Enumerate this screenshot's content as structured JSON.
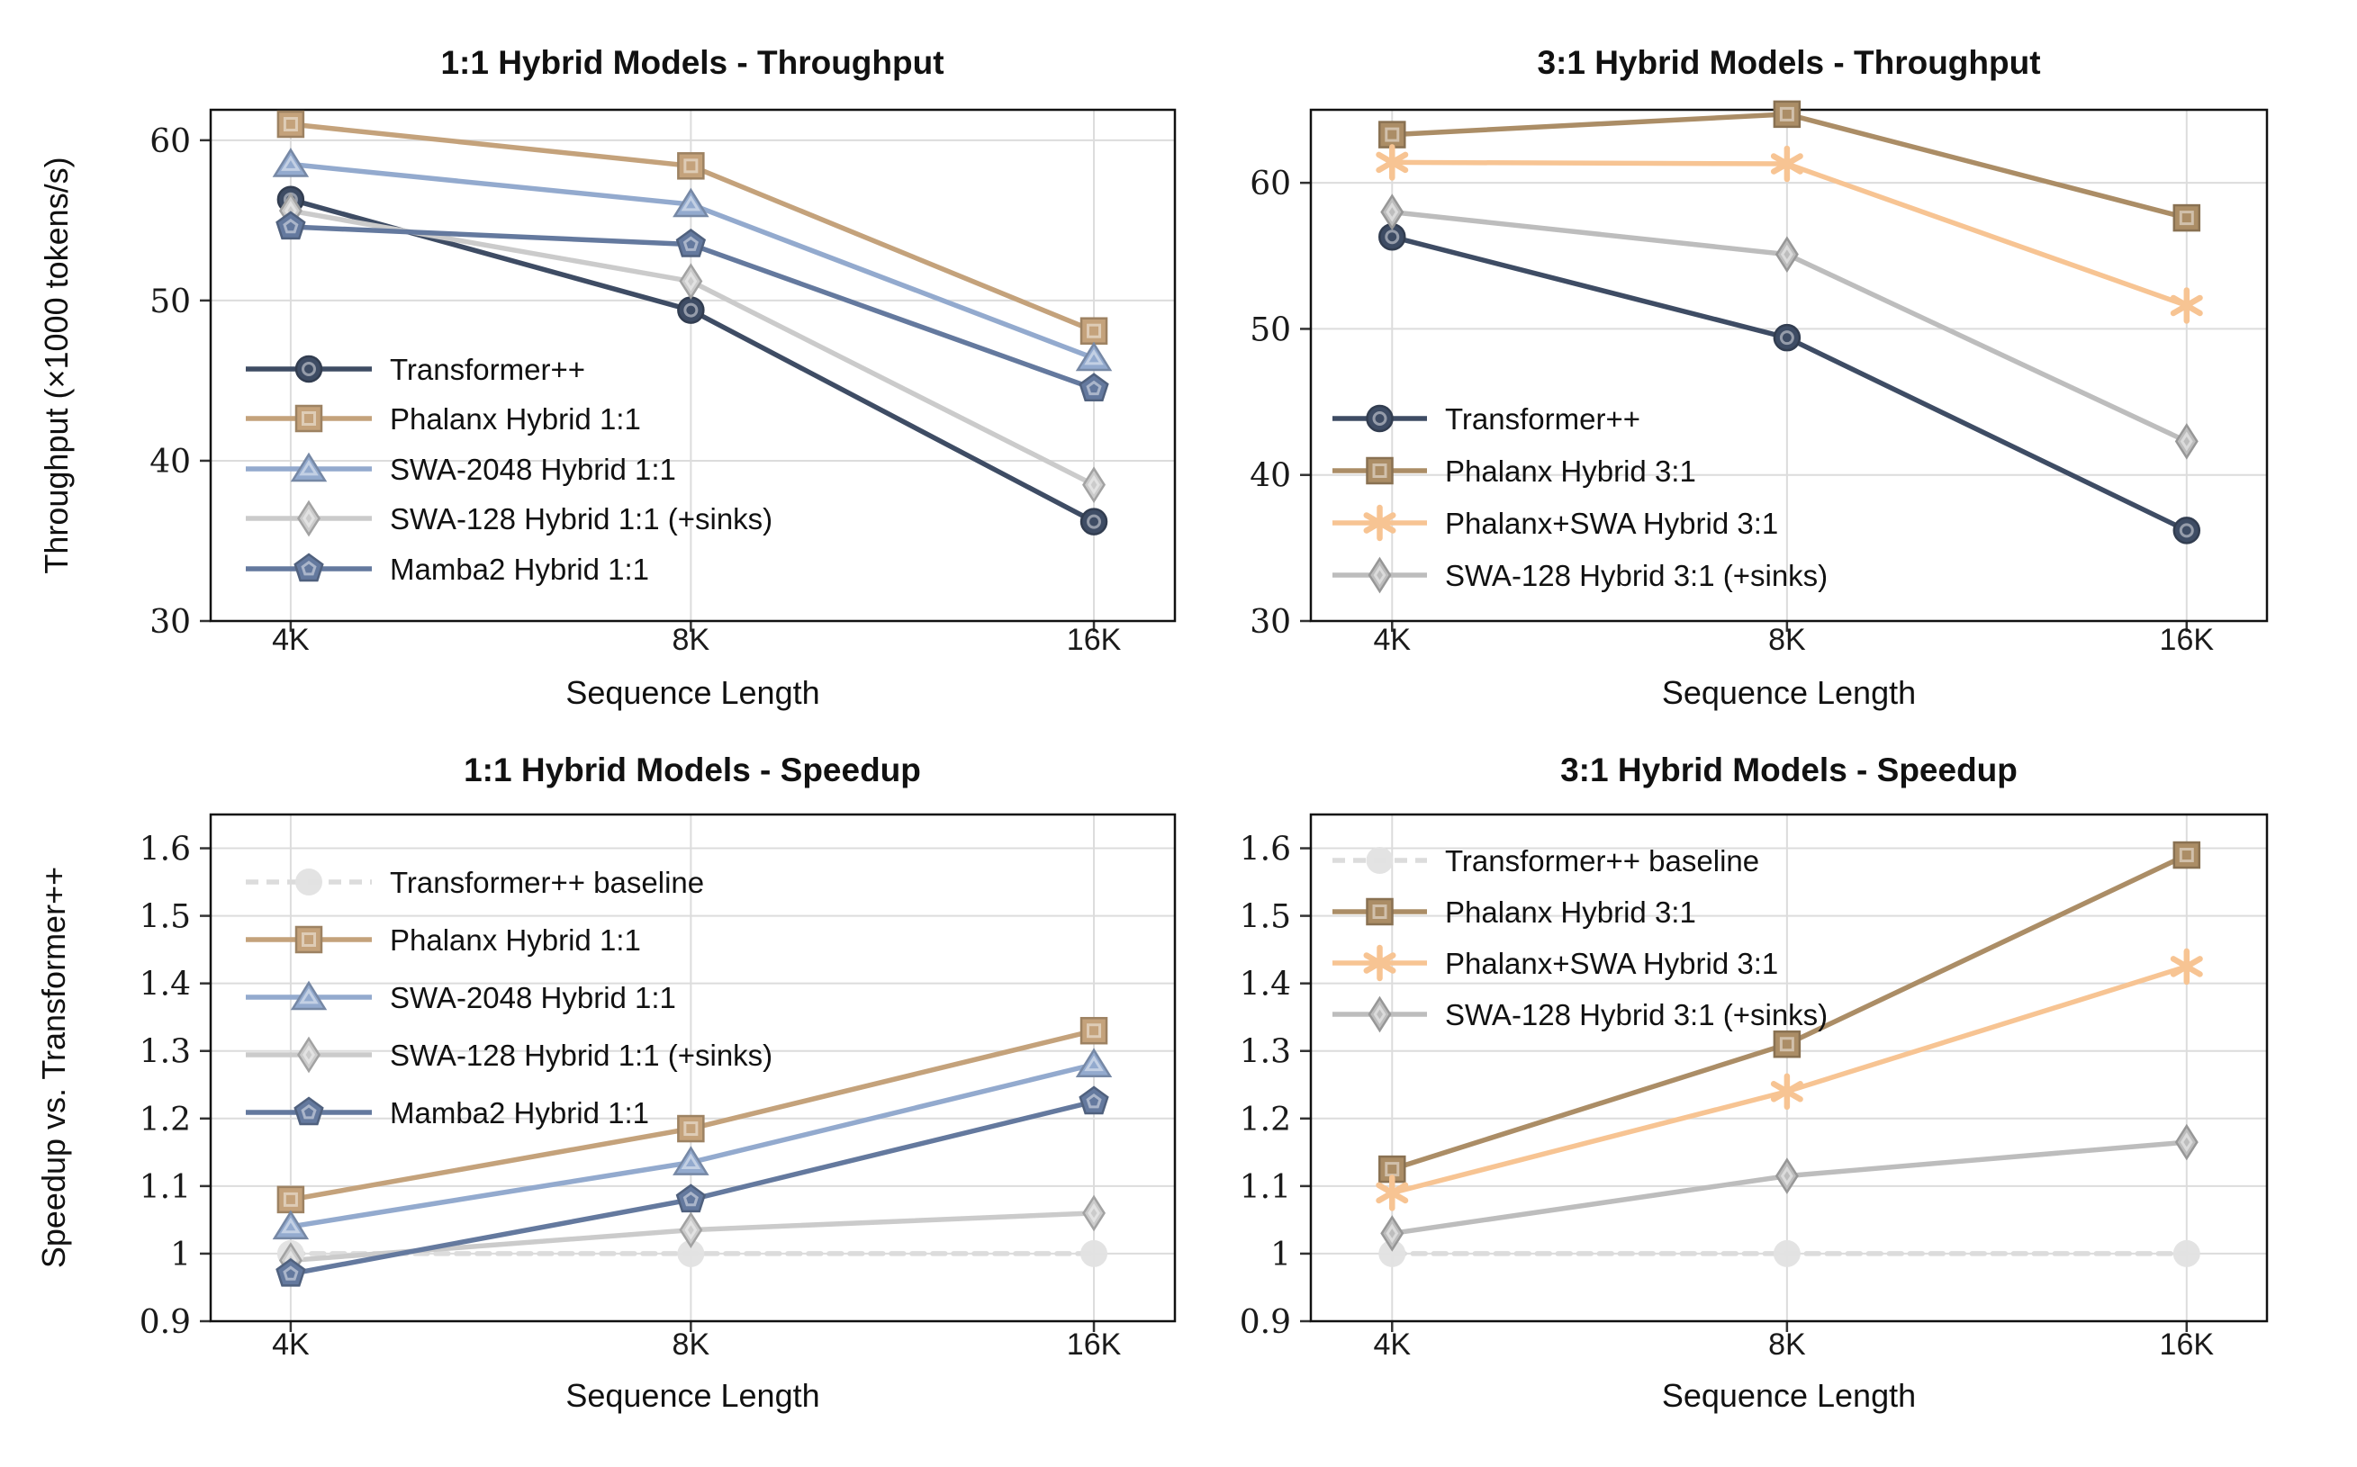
{
  "figure": {
    "background": "#ffffff"
  },
  "chart_data": [
    {
      "id": "throughput-1to1",
      "type": "line",
      "title": "1:1 Hybrid Models - Throughput",
      "xlabel": "Sequence Length",
      "ylabel": "Throughput (×1000 tokens/s)",
      "categories": [
        "4K",
        "8K",
        "16K"
      ],
      "ylim": [
        30,
        61.9
      ],
      "yticks": {
        "values": [
          30,
          40,
          50,
          60
        ],
        "labels": [
          "30",
          "40",
          "50",
          "60"
        ]
      },
      "grid": true,
      "legend_position": "lower-left-inside",
      "series": [
        {
          "name": "Transformer++",
          "color": "#3E4C64",
          "marker": "circle",
          "dashed": false,
          "values": [
            56.3,
            49.4,
            36.2
          ]
        },
        {
          "name": "Phalanx Hybrid 1:1",
          "color": "#C4A27B",
          "marker": "square",
          "dashed": false,
          "values": [
            61.0,
            58.4,
            48.1
          ]
        },
        {
          "name": "SWA-2048 Hybrid 1:1",
          "color": "#93AACE",
          "marker": "triangle",
          "dashed": false,
          "values": [
            58.5,
            56.0,
            46.4
          ]
        },
        {
          "name": "SWA-128 Hybrid 1:1 (+sinks)",
          "color": "#CBCBCB",
          "marker": "diamond",
          "dashed": false,
          "values": [
            55.6,
            51.2,
            38.5
          ]
        },
        {
          "name": "Mamba2 Hybrid 1:1",
          "color": "#64799E",
          "marker": "pentagon",
          "dashed": false,
          "values": [
            54.6,
            53.5,
            44.5
          ]
        }
      ]
    },
    {
      "id": "throughput-3to1",
      "type": "line",
      "title": "3:1 Hybrid Models - Throughput",
      "xlabel": "Sequence Length",
      "ylabel": "",
      "categories": [
        "4K",
        "8K",
        "16K"
      ],
      "ylim": [
        30,
        65.0
      ],
      "yticks": {
        "values": [
          30,
          40,
          50,
          60
        ],
        "labels": [
          "30",
          "40",
          "50",
          "60"
        ]
      },
      "grid": true,
      "legend_position": "lower-left-inside",
      "series": [
        {
          "name": "Transformer++",
          "color": "#3E4C64",
          "marker": "circle",
          "dashed": false,
          "values": [
            56.3,
            49.4,
            36.2
          ]
        },
        {
          "name": "Phalanx Hybrid 3:1",
          "color": "#AB8D66",
          "marker": "square",
          "dashed": false,
          "values": [
            63.3,
            64.7,
            57.6
          ]
        },
        {
          "name": "Phalanx+SWA Hybrid 3:1",
          "color": "#F7C493",
          "marker": "star",
          "dashed": false,
          "values": [
            61.4,
            61.3,
            51.6
          ]
        },
        {
          "name": "SWA-128 Hybrid 3:1 (+sinks)",
          "color": "#BDBDBD",
          "marker": "diamond",
          "dashed": false,
          "values": [
            58.0,
            55.1,
            42.3
          ]
        }
      ]
    },
    {
      "id": "speedup-1to1",
      "type": "line",
      "title": "1:1 Hybrid Models - Speedup",
      "xlabel": "Sequence Length",
      "ylabel": "Speedup vs. Transformer++",
      "categories": [
        "4K",
        "8K",
        "16K"
      ],
      "ylim": [
        0.9,
        1.65
      ],
      "yticks": {
        "values": [
          0.9,
          1.0,
          1.1,
          1.2,
          1.3,
          1.4,
          1.5,
          1.6
        ],
        "labels": [
          "0.9",
          "1",
          "1.1",
          "1.2",
          "1.3",
          "1.4",
          "1.5",
          "1.6"
        ]
      },
      "grid": true,
      "legend_position": "upper-left-inside",
      "series": [
        {
          "name": "Transformer++ baseline",
          "color": "#DCDCDC",
          "marker": "circle-lg",
          "dashed": true,
          "values": [
            1.0,
            1.0,
            1.0
          ]
        },
        {
          "name": "Phalanx Hybrid 1:1",
          "color": "#C4A27B",
          "marker": "square",
          "dashed": false,
          "values": [
            1.08,
            1.185,
            1.33
          ]
        },
        {
          "name": "SWA-2048 Hybrid 1:1",
          "color": "#93AACE",
          "marker": "triangle",
          "dashed": false,
          "values": [
            1.04,
            1.135,
            1.28
          ]
        },
        {
          "name": "SWA-128 Hybrid 1:1 (+sinks)",
          "color": "#CBCBCB",
          "marker": "diamond",
          "dashed": false,
          "values": [
            0.99,
            1.035,
            1.06
          ]
        },
        {
          "name": "Mamba2 Hybrid 1:1",
          "color": "#64799E",
          "marker": "pentagon",
          "dashed": false,
          "values": [
            0.97,
            1.08,
            1.225
          ]
        }
      ]
    },
    {
      "id": "speedup-3to1",
      "type": "line",
      "title": "3:1 Hybrid Models - Speedup",
      "xlabel": "Sequence Length",
      "ylabel": "",
      "categories": [
        "4K",
        "8K",
        "16K"
      ],
      "ylim": [
        0.9,
        1.65
      ],
      "yticks": {
        "values": [
          0.9,
          1.0,
          1.1,
          1.2,
          1.3,
          1.4,
          1.5,
          1.6
        ],
        "labels": [
          "0.9",
          "1",
          "1.1",
          "1.2",
          "1.3",
          "1.4",
          "1.5",
          "1.6"
        ]
      },
      "grid": true,
      "legend_position": "upper-left-inside",
      "series": [
        {
          "name": "Transformer++ baseline",
          "color": "#DCDCDC",
          "marker": "circle-lg",
          "dashed": true,
          "values": [
            1.0,
            1.0,
            1.0
          ]
        },
        {
          "name": "Phalanx Hybrid 3:1",
          "color": "#AB8D66",
          "marker": "square",
          "dashed": false,
          "values": [
            1.125,
            1.31,
            1.59
          ]
        },
        {
          "name": "Phalanx+SWA Hybrid 3:1",
          "color": "#F7C493",
          "marker": "star",
          "dashed": false,
          "values": [
            1.09,
            1.24,
            1.425
          ]
        },
        {
          "name": "SWA-128 Hybrid 3:1 (+sinks)",
          "color": "#BDBDBD",
          "marker": "diamond",
          "dashed": false,
          "values": [
            1.03,
            1.115,
            1.165
          ]
        }
      ]
    }
  ]
}
